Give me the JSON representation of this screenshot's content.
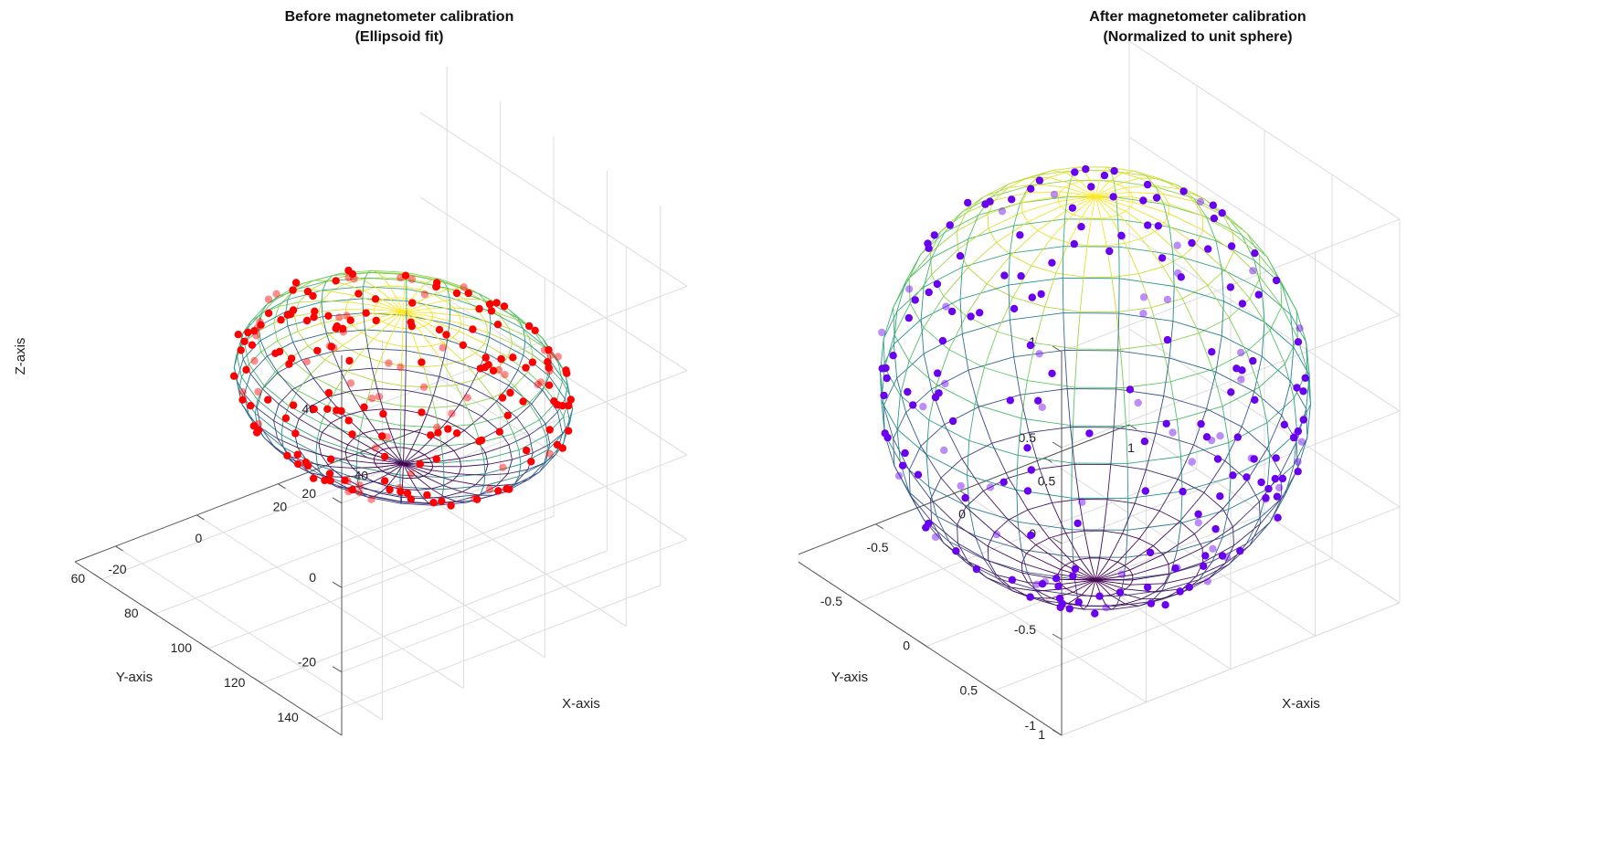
{
  "chart_data": [
    {
      "type": "scatter",
      "title": "Before magnetometer calibration",
      "subtitle": "(Ellipsoid fit)",
      "xlabel": "X-axis",
      "ylabel": "Y-axis",
      "zlabel": "Z-axis",
      "xlim": [
        -30,
        55
      ],
      "ylim": [
        50,
        150
      ],
      "zlim": [
        -35,
        55
      ],
      "x_ticks": [
        "-20",
        "0",
        "20",
        "40"
      ],
      "y_ticks": [
        "60",
        "80",
        "100",
        "120",
        "140"
      ],
      "z_ticks": [
        "-20",
        "0",
        "20",
        "40"
      ],
      "grid": true,
      "surface": {
        "shape": "ellipsoid",
        "center": [
          18,
          100,
          9
        ],
        "radii": [
          30,
          44,
          18
        ],
        "colormap": "viridis"
      },
      "point_color": "#ff0000",
      "point_count": 200
    },
    {
      "type": "scatter",
      "title": "After magnetometer calibration",
      "subtitle": "(Normalized to unit sphere)",
      "xlabel": "X-axis",
      "ylabel": "Y-axis",
      "zlabel": "Z-axis",
      "xlim": [
        -1,
        1
      ],
      "ylim": [
        -1,
        1
      ],
      "zlim": [
        -1,
        1
      ],
      "x_ticks": [
        "-1",
        "-0.5",
        "0",
        "0.5",
        "1"
      ],
      "y_ticks": [
        "-1",
        "-0.5",
        "0",
        "0.5",
        "1"
      ],
      "z_ticks": [
        "-1",
        "-0.5",
        "0",
        "0.5",
        "1"
      ],
      "grid": true,
      "surface": {
        "shape": "sphere",
        "center": [
          0,
          0,
          0
        ],
        "radii": [
          1,
          1,
          1
        ],
        "colormap": "viridis"
      },
      "point_color": "#6a00f0",
      "point_count": 200
    }
  ]
}
